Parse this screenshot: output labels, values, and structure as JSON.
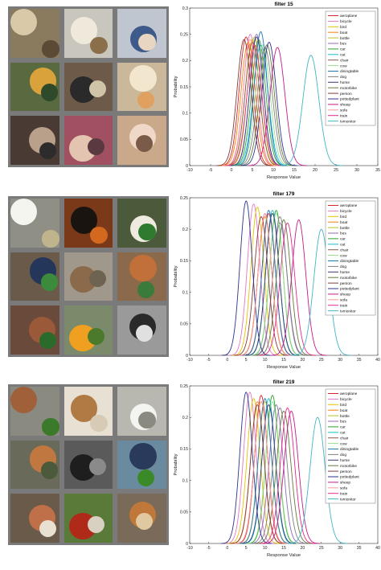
{
  "chart_data": [
    {
      "type": "line",
      "title": "filter 15",
      "xlabel": "Response Value",
      "ylabel": "Probability",
      "xlim": [
        -10,
        35
      ],
      "ylim": [
        0,
        0.3
      ],
      "xticks": [
        -10,
        -5,
        0,
        5,
        10,
        15,
        20,
        25,
        30,
        35
      ],
      "yticks": [
        0,
        0.05,
        0.1,
        0.15,
        0.2,
        0.25,
        0.3
      ],
      "legend_position": "top-right",
      "series": [
        {
          "name": "aeroplane",
          "color": "#d62728",
          "peak_x": 3.5,
          "peak_y": 0.245
        },
        {
          "name": "bicycle",
          "color": "#e377c2",
          "peak_x": 4.5,
          "peak_y": 0.25
        },
        {
          "name": "bird",
          "color": "#e5c400",
          "peak_x": 5,
          "peak_y": 0.24
        },
        {
          "name": "boat",
          "color": "#ff7f0e",
          "peak_x": 4,
          "peak_y": 0.235
        },
        {
          "name": "bottle",
          "color": "#bcbd22",
          "peak_x": 5.5,
          "peak_y": 0.245
        },
        {
          "name": "bus",
          "color": "#9467bd",
          "peak_x": 6,
          "peak_y": 0.25
        },
        {
          "name": "car",
          "color": "#2ca02c",
          "peak_x": 6.5,
          "peak_y": 0.24
        },
        {
          "name": "cat",
          "color": "#17becf",
          "peak_x": 7,
          "peak_y": 0.23
        },
        {
          "name": "chair",
          "color": "#8c564b",
          "peak_x": 5,
          "peak_y": 0.235
        },
        {
          "name": "cow",
          "color": "#98df8a",
          "peak_x": 7.5,
          "peak_y": 0.23
        },
        {
          "name": "diningtable",
          "color": "#1f77b4",
          "peak_x": 7,
          "peak_y": 0.255
        },
        {
          "name": "dog",
          "color": "#7f7f7f",
          "peak_x": 8,
          "peak_y": 0.225
        },
        {
          "name": "horse",
          "color": "#393b79",
          "peak_x": 6,
          "peak_y": 0.245
        },
        {
          "name": "motorbike",
          "color": "#637939",
          "peak_x": 8.5,
          "peak_y": 0.23
        },
        {
          "name": "person",
          "color": "#843c39",
          "peak_x": 3,
          "peak_y": 0.24
        },
        {
          "name": "pottedplant",
          "color": "#2e3192",
          "peak_x": 9,
          "peak_y": 0.235
        },
        {
          "name": "sheep",
          "color": "#c51b8a",
          "peak_x": 11,
          "peak_y": 0.225
        },
        {
          "name": "sofa",
          "color": "#ff9896",
          "peak_x": 4.5,
          "peak_y": 0.24
        },
        {
          "name": "train",
          "color": "#e7298a",
          "peak_x": 5.5,
          "peak_y": 0.23
        },
        {
          "name": "tvmonitor",
          "color": "#41b6c4",
          "peak_x": 19,
          "peak_y": 0.21
        }
      ]
    },
    {
      "type": "line",
      "title": "filter 179",
      "xlabel": "Response Value",
      "ylabel": "Probability",
      "xlim": [
        -10,
        40
      ],
      "ylim": [
        0,
        0.25
      ],
      "xticks": [
        -10,
        -5,
        0,
        5,
        10,
        15,
        20,
        25,
        30,
        35,
        40
      ],
      "yticks": [
        0,
        0.05,
        0.1,
        0.15,
        0.2,
        0.25
      ],
      "legend_position": "top-right",
      "series": [
        {
          "name": "aeroplane",
          "color": "#d62728",
          "peak_x": 11,
          "peak_y": 0.225
        },
        {
          "name": "bicycle",
          "color": "#e377c2",
          "peak_x": 7,
          "peak_y": 0.24
        },
        {
          "name": "bird",
          "color": "#e5c400",
          "peak_x": 8,
          "peak_y": 0.235
        },
        {
          "name": "boat",
          "color": "#ff7f0e",
          "peak_x": 10,
          "peak_y": 0.22
        },
        {
          "name": "bottle",
          "color": "#bcbd22",
          "peak_x": 12,
          "peak_y": 0.225
        },
        {
          "name": "bus",
          "color": "#9467bd",
          "peak_x": 14,
          "peak_y": 0.21
        },
        {
          "name": "car",
          "color": "#2ca02c",
          "peak_x": 13,
          "peak_y": 0.23
        },
        {
          "name": "cat",
          "color": "#17becf",
          "peak_x": 12,
          "peak_y": 0.23
        },
        {
          "name": "chair",
          "color": "#8c564b",
          "peak_x": 10,
          "peak_y": 0.225
        },
        {
          "name": "cow",
          "color": "#98df8a",
          "peak_x": 13,
          "peak_y": 0.225
        },
        {
          "name": "diningtable",
          "color": "#1f77b4",
          "peak_x": 11,
          "peak_y": 0.23
        },
        {
          "name": "dog",
          "color": "#7f7f7f",
          "peak_x": 14,
          "peak_y": 0.22
        },
        {
          "name": "horse",
          "color": "#393b79",
          "peak_x": 12,
          "peak_y": 0.225
        },
        {
          "name": "motorbike",
          "color": "#637939",
          "peak_x": 15,
          "peak_y": 0.215
        },
        {
          "name": "person",
          "color": "#843c39",
          "peak_x": 9,
          "peak_y": 0.22
        },
        {
          "name": "pottedplant",
          "color": "#2e3192",
          "peak_x": 5,
          "peak_y": 0.245
        },
        {
          "name": "sheep",
          "color": "#c51b8a",
          "peak_x": 19,
          "peak_y": 0.215
        },
        {
          "name": "sofa",
          "color": "#ff9896",
          "peak_x": 10,
          "peak_y": 0.225
        },
        {
          "name": "train",
          "color": "#e7298a",
          "peak_x": 16,
          "peak_y": 0.21
        },
        {
          "name": "tvmonitor",
          "color": "#41b6c4",
          "peak_x": 25,
          "peak_y": 0.2
        }
      ]
    },
    {
      "type": "line",
      "title": "filter 219",
      "xlabel": "Response Value",
      "ylabel": "Probability",
      "xlim": [
        -10,
        40
      ],
      "ylim": [
        0,
        0.25
      ],
      "xticks": [
        -10,
        -5,
        0,
        5,
        10,
        15,
        20,
        25,
        30,
        35,
        40
      ],
      "yticks": [
        0,
        0.05,
        0.1,
        0.15,
        0.2,
        0.25
      ],
      "legend_position": "top-right",
      "series": [
        {
          "name": "aeroplane",
          "color": "#d62728",
          "peak_x": 9,
          "peak_y": 0.235
        },
        {
          "name": "bicycle",
          "color": "#e377c2",
          "peak_x": 6,
          "peak_y": 0.24
        },
        {
          "name": "bird",
          "color": "#e5c400",
          "peak_x": 7,
          "peak_y": 0.23
        },
        {
          "name": "boat",
          "color": "#ff7f0e",
          "peak_x": 8,
          "peak_y": 0.225
        },
        {
          "name": "bottle",
          "color": "#bcbd22",
          "peak_x": 10,
          "peak_y": 0.225
        },
        {
          "name": "bus",
          "color": "#9467bd",
          "peak_x": 13,
          "peak_y": 0.22
        },
        {
          "name": "car",
          "color": "#2ca02c",
          "peak_x": 12,
          "peak_y": 0.235
        },
        {
          "name": "cat",
          "color": "#17becf",
          "peak_x": 11,
          "peak_y": 0.23
        },
        {
          "name": "chair",
          "color": "#8c564b",
          "peak_x": 9,
          "peak_y": 0.225
        },
        {
          "name": "cow",
          "color": "#98df8a",
          "peak_x": 12,
          "peak_y": 0.225
        },
        {
          "name": "diningtable",
          "color": "#1f77b4",
          "peak_x": 10,
          "peak_y": 0.23
        },
        {
          "name": "dog",
          "color": "#7f7f7f",
          "peak_x": 14,
          "peak_y": 0.215
        },
        {
          "name": "horse",
          "color": "#393b79",
          "peak_x": 11,
          "peak_y": 0.22
        },
        {
          "name": "motorbike",
          "color": "#637939",
          "peak_x": 15,
          "peak_y": 0.21
        },
        {
          "name": "person",
          "color": "#843c39",
          "peak_x": 8,
          "peak_y": 0.22
        },
        {
          "name": "pottedplant",
          "color": "#2e3192",
          "peak_x": 5,
          "peak_y": 0.24
        },
        {
          "name": "sheep",
          "color": "#c51b8a",
          "peak_x": 17,
          "peak_y": 0.21
        },
        {
          "name": "sofa",
          "color": "#ff9896",
          "peak_x": 9,
          "peak_y": 0.225
        },
        {
          "name": "train",
          "color": "#e7298a",
          "peak_x": 16,
          "peak_y": 0.215
        },
        {
          "name": "tvmonitor",
          "color": "#41b6c4",
          "peak_x": 24,
          "peak_y": 0.2
        }
      ]
    }
  ],
  "mosaics": [
    {
      "tiles": [
        {
          "bg": "#8a7a5e",
          "a": "#d9c9a8",
          "b": "#5a4a36"
        },
        {
          "bg": "#c9c6bd",
          "a": "#efe9dc",
          "b": "#8b6f4a"
        },
        {
          "bg": "#bfc6cf",
          "a": "#3d5a8a",
          "b": "#e9d6c2"
        },
        {
          "bg": "#5a6a40",
          "a": "#d9a23a",
          "b": "#2e4a2a"
        },
        {
          "bg": "#6d5a48",
          "a": "#2a2a2a",
          "b": "#cfc3a8"
        },
        {
          "bg": "#cbb89a",
          "a": "#f2e6cf",
          "b": "#e0a060"
        },
        {
          "bg": "#4a3a34",
          "a": "#b9a08a",
          "b": "#2c2c2c"
        },
        {
          "bg": "#a05060",
          "a": "#e2c4b0",
          "b": "#5a3a40"
        },
        {
          "bg": "#c9a98a",
          "a": "#f0d8c8",
          "b": "#7a5a48"
        }
      ]
    },
    {
      "tiles": [
        {
          "bg": "#8f8f86",
          "a": "#f5f5f0",
          "b": "#c0b48c"
        },
        {
          "bg": "#7a3a1a",
          "a": "#1a1410",
          "b": "#d2691e"
        },
        {
          "bg": "#4a5a3a",
          "a": "#eeeae0",
          "b": "#2e7a2e"
        },
        {
          "bg": "#6a5a4a",
          "a": "#24375a",
          "b": "#3c8a3c"
        },
        {
          "bg": "#a0988a",
          "a": "#8a6a4a",
          "b": "#6e6250"
        },
        {
          "bg": "#8a6a4a",
          "a": "#c2703a",
          "b": "#3a7a3a"
        },
        {
          "bg": "#6a4a3a",
          "a": "#9a5a3a",
          "b": "#2a6a2a"
        },
        {
          "bg": "#7a8a6a",
          "a": "#f0a020",
          "b": "#4a7a2a"
        },
        {
          "bg": "#9a9a9a",
          "a": "#2a2a2a",
          "b": "#e0e0e0"
        }
      ]
    },
    {
      "tiles": [
        {
          "bg": "#8a8a80",
          "a": "#a0603a",
          "b": "#3a7a2a"
        },
        {
          "bg": "#e8e0d2",
          "a": "#b07a44",
          "b": "#d8cbb6"
        },
        {
          "bg": "#b8b8b0",
          "a": "#f4f4f0",
          "b": "#8a8a80"
        },
        {
          "bg": "#6a6a5a",
          "a": "#c07840",
          "b": "#4a5a3a"
        },
        {
          "bg": "#5a5a5a",
          "a": "#1e1e1e",
          "b": "#8a8a8a"
        },
        {
          "bg": "#6a8aa0",
          "a": "#2a3a5a",
          "b": "#3a8a2a"
        },
        {
          "bg": "#6a5a4a",
          "a": "#c07048",
          "b": "#e8e0d0"
        },
        {
          "bg": "#5a7a3a",
          "a": "#b02a1a",
          "b": "#d8d0c0"
        },
        {
          "bg": "#7a6a5a",
          "a": "#c0783a",
          "b": "#e0c8a0"
        }
      ]
    }
  ]
}
